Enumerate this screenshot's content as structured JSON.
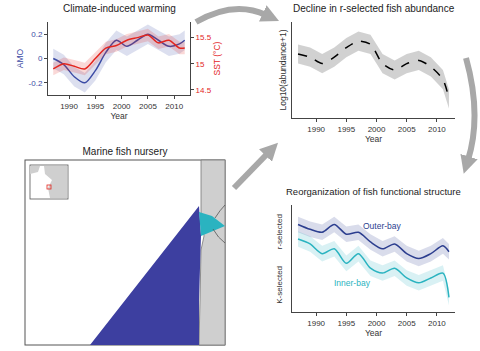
{
  "chart_data": [
    {
      "type": "line",
      "title": "Climate-induced warming",
      "xlabel": "Year",
      "x": [
        1987,
        1989,
        1991,
        1993,
        1995,
        1997,
        1999,
        2001,
        2003,
        2005,
        2007,
        2009,
        2011,
        2012
      ],
      "xlim": [
        1986,
        2013
      ],
      "xticks": [
        1990,
        1995,
        2000,
        2005,
        2010
      ],
      "ylabel": "AMO",
      "ylim": [
        -0.3,
        0.3
      ],
      "yticks": [
        -0.2,
        0,
        0.2
      ],
      "y2label": "SST (°C)",
      "y2lim": [
        14.4,
        15.8
      ],
      "y2ticks": [
        14.5,
        15,
        15.5
      ],
      "series": [
        {
          "color": "#3b4ba5",
          "values": [
            0.0,
            -0.05,
            -0.15,
            -0.2,
            -0.1,
            0.05,
            0.15,
            0.1,
            0.15,
            0.2,
            0.15,
            0.1,
            0.12,
            0.15
          ],
          "lower": [
            -0.08,
            -0.13,
            -0.23,
            -0.28,
            -0.18,
            -0.03,
            0.07,
            0.02,
            0.07,
            0.12,
            0.07,
            0.02,
            0.04,
            0.07
          ],
          "upper": [
            0.08,
            0.03,
            -0.07,
            -0.12,
            -0.02,
            0.13,
            0.23,
            0.18,
            0.23,
            0.28,
            0.23,
            0.18,
            0.2,
            0.23
          ]
        },
        {
          "color": "#e3261f",
          "axis": "y2",
          "values": [
            14.9,
            15.0,
            14.95,
            14.9,
            15.1,
            15.3,
            15.35,
            15.45,
            15.5,
            15.55,
            15.4,
            15.45,
            15.3,
            15.3
          ],
          "lower": [
            14.78,
            14.88,
            14.83,
            14.78,
            14.98,
            15.18,
            15.23,
            15.33,
            15.38,
            15.43,
            15.28,
            15.33,
            15.18,
            15.18
          ],
          "upper": [
            15.02,
            15.12,
            15.07,
            15.02,
            15.22,
            15.42,
            15.47,
            15.57,
            15.62,
            15.67,
            15.52,
            15.57,
            15.42,
            15.42
          ]
        }
      ]
    },
    {
      "type": "line",
      "title": "Decline in r-selected fish abundance",
      "xlabel": "Year",
      "ylabel": "Log10(abundance+1)",
      "x": [
        1987,
        1989,
        1991,
        1993,
        1995,
        1997,
        1999,
        2001,
        2003,
        2005,
        2007,
        2009,
        2011,
        2012
      ],
      "xlim": [
        1986,
        2013
      ],
      "xticks": [
        1990,
        1995,
        2000,
        2005,
        2010
      ],
      "ylim": [
        0.6,
        3.6
      ],
      "tick_labels": "x",
      "series": [
        {
          "color": "#000000",
          "line_style": "dashed",
          "values": [
            2.6,
            2.5,
            2.3,
            2.5,
            2.8,
            3.0,
            2.9,
            2.3,
            2.1,
            2.3,
            2.4,
            2.2,
            1.8,
            1.2
          ],
          "lower": [
            2.3,
            2.2,
            2.0,
            2.2,
            2.5,
            2.7,
            2.6,
            2.0,
            1.8,
            2.0,
            2.1,
            1.9,
            1.5,
            0.9
          ],
          "upper": [
            2.9,
            2.8,
            2.6,
            2.8,
            3.1,
            3.3,
            3.2,
            2.6,
            2.4,
            2.6,
            2.7,
            2.5,
            2.1,
            1.5
          ]
        }
      ]
    },
    {
      "type": "line",
      "title": "Reorganization of fish functional structure",
      "xlabel": "Year",
      "ylabel_top": "r-selected",
      "ylabel_bottom": "K-selected",
      "x": [
        1987,
        1989,
        1991,
        1993,
        1995,
        1997,
        1999,
        2001,
        2003,
        2005,
        2007,
        2009,
        2011,
        2012
      ],
      "xlim": [
        1986,
        2013
      ],
      "xticks": [
        1990,
        1995,
        2000,
        2005,
        2010
      ],
      "ylim": [
        -0.1,
        1
      ],
      "tick_labels": "x",
      "series": [
        {
          "color": "#2c3e8f",
          "values": [
            0.8,
            0.75,
            0.72,
            0.8,
            0.7,
            0.72,
            0.62,
            0.55,
            0.6,
            0.5,
            0.45,
            0.5,
            0.58,
            0.52
          ],
          "lower": [
            0.72,
            0.67,
            0.64,
            0.72,
            0.62,
            0.64,
            0.54,
            0.47,
            0.52,
            0.42,
            0.37,
            0.42,
            0.5,
            0.44
          ],
          "upper": [
            0.88,
            0.83,
            0.8,
            0.88,
            0.78,
            0.8,
            0.7,
            0.63,
            0.68,
            0.58,
            0.53,
            0.58,
            0.66,
            0.6
          ]
        },
        {
          "color": "#2ab3c0",
          "values": [
            0.65,
            0.6,
            0.5,
            0.55,
            0.4,
            0.5,
            0.35,
            0.3,
            0.35,
            0.25,
            0.2,
            0.25,
            0.3,
            0.05
          ],
          "lower": [
            0.57,
            0.52,
            0.42,
            0.47,
            0.32,
            0.42,
            0.27,
            0.22,
            0.27,
            0.17,
            0.12,
            0.17,
            0.22,
            -0.03
          ],
          "upper": [
            0.73,
            0.68,
            0.58,
            0.63,
            0.48,
            0.58,
            0.43,
            0.38,
            0.43,
            0.33,
            0.28,
            0.33,
            0.38,
            0.13
          ]
        }
      ],
      "annotations": [
        {
          "text": "Outer-bay",
          "x": 2001,
          "y": 0.78
        },
        {
          "text": "Inner-bay",
          "x": 1996,
          "y": 0.2
        }
      ]
    }
  ],
  "map": {
    "title": "Marine fish nursery"
  }
}
